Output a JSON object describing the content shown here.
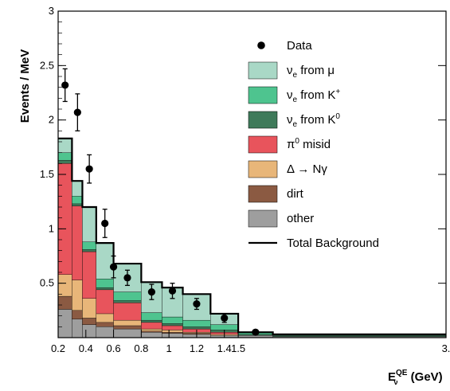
{
  "chart_data": {
    "type": "bar",
    "subtype": "stacked-histogram-with-data-points",
    "xlabel": "E",
    "xlabel_sup": "QE",
    "xlabel_sub": "ν",
    "xlabel_unit": "(GeV)",
    "ylabel": "Events / MeV",
    "xlim": [
      0.2,
      3
    ],
    "ylim": [
      0,
      3
    ],
    "x_ticks": [
      {
        "value": 0.2,
        "label": "0.2"
      },
      {
        "value": 0.4,
        "label": "0.4"
      },
      {
        "value": 0.6,
        "label": "0.6"
      },
      {
        "value": 0.8,
        "label": "0.8"
      },
      {
        "value": 1.0,
        "label": "1"
      },
      {
        "value": 1.2,
        "label": "1.2"
      },
      {
        "value": 1.4,
        "label": "1.4"
      },
      {
        "value": 1.5,
        "label": "1.5"
      },
      {
        "value": 3.0,
        "label": "3."
      }
    ],
    "y_ticks": [
      {
        "value": 0,
        "label": ""
      },
      {
        "value": 0.5,
        "label": "0.5"
      },
      {
        "value": 1,
        "label": "1"
      },
      {
        "value": 1.5,
        "label": "1.5"
      },
      {
        "value": 2,
        "label": "2"
      },
      {
        "value": 2.5,
        "label": "2.5"
      },
      {
        "value": 3,
        "label": "3"
      }
    ],
    "bins": [
      [
        0.2,
        0.3
      ],
      [
        0.3,
        0.375
      ],
      [
        0.375,
        0.475
      ],
      [
        0.475,
        0.6
      ],
      [
        0.6,
        0.8
      ],
      [
        0.8,
        0.95
      ],
      [
        0.95,
        1.1
      ],
      [
        1.1,
        1.3
      ],
      [
        1.3,
        1.5
      ],
      [
        1.5,
        1.75
      ],
      [
        1.75,
        3.0
      ]
    ],
    "series": [
      {
        "name": "other",
        "color": "#9e9e9e",
        "values": [
          0.26,
          0.17,
          0.12,
          0.1,
          0.08,
          0.05,
          0.04,
          0.03,
          0.02,
          0.02,
          0.01
        ]
      },
      {
        "name": "dirt",
        "color": "#8b5a42",
        "values": [
          0.12,
          0.08,
          0.06,
          0.04,
          0.03,
          0.01,
          0.01,
          0.01,
          0.0,
          0.0,
          0.0
        ]
      },
      {
        "name": "Δ → Nγ",
        "color": "#e8b679",
        "values": [
          0.2,
          0.28,
          0.18,
          0.08,
          0.05,
          0.02,
          0.02,
          0.01,
          0.01,
          0.0,
          0.0
        ]
      },
      {
        "name": "π⁰ misid",
        "color": "#e8545c",
        "values": [
          1.02,
          0.68,
          0.43,
          0.22,
          0.16,
          0.06,
          0.04,
          0.03,
          0.02,
          0.0,
          0.0
        ]
      },
      {
        "name": "νe from K⁰",
        "color": "#3f7a5a",
        "values": [
          0.03,
          0.02,
          0.02,
          0.02,
          0.02,
          0.02,
          0.02,
          0.02,
          0.02,
          0.01,
          0.01
        ]
      },
      {
        "name": "νe from K⁺",
        "color": "#4ec48f",
        "values": [
          0.07,
          0.07,
          0.07,
          0.08,
          0.08,
          0.07,
          0.06,
          0.06,
          0.05,
          0.02,
          0.01
        ]
      },
      {
        "name": "νe from μ",
        "color": "#a9d8c6",
        "values": [
          0.13,
          0.14,
          0.32,
          0.33,
          0.26,
          0.28,
          0.27,
          0.24,
          0.1,
          0.0,
          0.0
        ]
      }
    ],
    "total_background": [
      1.83,
      1.44,
      1.2,
      0.87,
      0.68,
      0.51,
      0.46,
      0.4,
      0.22,
      0.05,
      0.03
    ],
    "data_points": [
      {
        "x": 0.25,
        "y": 2.32,
        "err": 0.15
      },
      {
        "x": 0.34,
        "y": 2.07,
        "err": 0.17
      },
      {
        "x": 0.425,
        "y": 1.55,
        "err": 0.13
      },
      {
        "x": 0.5375,
        "y": 1.05,
        "err": 0.13
      },
      {
        "x": 0.6,
        "y": 0.65,
        "err": 0.1
      },
      {
        "x": 0.7,
        "y": 0.55,
        "err": 0.07
      },
      {
        "x": 0.875,
        "y": 0.42,
        "err": 0.07
      },
      {
        "x": 1.025,
        "y": 0.43,
        "err": 0.07
      },
      {
        "x": 1.2,
        "y": 0.31,
        "err": 0.05
      },
      {
        "x": 1.4,
        "y": 0.18,
        "err": 0.04
      },
      {
        "x": 1.625,
        "y": 0.05,
        "err": 0.02
      }
    ],
    "legend": {
      "placement": "top-right",
      "entries": [
        {
          "kind": "marker",
          "label": "Data",
          "color": "#000000"
        },
        {
          "kind": "box",
          "label": "from μ",
          "nu": "ν",
          "nu_sub": "e",
          "sup": "",
          "color": "#a9d8c6"
        },
        {
          "kind": "box",
          "label": "from K",
          "nu": "ν",
          "nu_sub": "e",
          "sup": "+",
          "color": "#4ec48f"
        },
        {
          "kind": "box",
          "label": "from K",
          "nu": "ν",
          "nu_sub": "e",
          "sup": "0",
          "color": "#3f7a5a"
        },
        {
          "kind": "box",
          "label": " misid",
          "nu": "π",
          "nu_sub": "",
          "sup": "0",
          "color": "#e8545c"
        },
        {
          "kind": "box",
          "label": "Δ → Nγ",
          "nu": "",
          "nu_sub": "",
          "sup": "",
          "color": "#e8b679"
        },
        {
          "kind": "box",
          "label": "dirt",
          "nu": "",
          "nu_sub": "",
          "sup": "",
          "color": "#8b5a42"
        },
        {
          "kind": "box",
          "label": "other",
          "nu": "",
          "nu_sub": "",
          "sup": "",
          "color": "#9e9e9e"
        },
        {
          "kind": "line",
          "label": "Total Background",
          "color": "#000000"
        }
      ]
    }
  }
}
